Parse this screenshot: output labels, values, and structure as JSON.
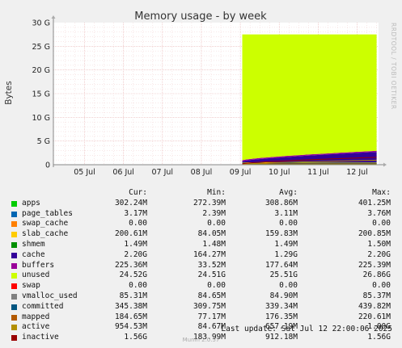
{
  "chart_data": {
    "type": "area",
    "title": "Memory usage - by week",
    "ylabel": "Bytes",
    "side_label": "RRDTOOL / TOBI OETIKER",
    "y_ticks": [
      "0",
      "5 G",
      "10 G",
      "15 G",
      "20 G",
      "25 G",
      "30 G"
    ],
    "ylim": [
      0,
      30
    ],
    "y_unit": "G",
    "x_ticks": [
      "05 Jul",
      "06 Jul",
      "07 Jul",
      "08 Jul",
      "09 Jul",
      "10 Jul",
      "11 Jul",
      "12 Jul"
    ],
    "x_days": [
      5,
      6,
      7,
      8,
      9,
      10,
      11,
      12
    ],
    "xlim_days": [
      4.2,
      12.55
    ],
    "data_start_day": 9.05,
    "grid": true,
    "stack": [
      {
        "name": "apps",
        "value": 0.302
      },
      {
        "name": "page_tables",
        "value": 0.003
      },
      {
        "name": "swap_cache",
        "value": 0.0
      },
      {
        "name": "slab_cache",
        "value": 0.201
      },
      {
        "name": "shmem",
        "value": 0.0015
      },
      {
        "name": "cache",
        "start": 0.2,
        "end": 2.2
      },
      {
        "name": "buffers",
        "value": 0.225
      },
      {
        "name": "unused",
        "top": 27.5
      }
    ],
    "overlays": [
      {
        "name": "committed",
        "value": 0.345
      },
      {
        "name": "mapped",
        "value": 0.185
      },
      {
        "name": "active",
        "start": 0.1,
        "end": 0.95
      },
      {
        "name": "inactive",
        "start": 0.2,
        "end": 1.56
      }
    ]
  },
  "legend": {
    "headers": {
      "cur": "Cur:",
      "min": "Min:",
      "avg": "Avg:",
      "max": "Max:"
    },
    "rows": [
      {
        "name": "apps",
        "color": "#00cc00",
        "cur": "302.24M",
        "min": "272.39M",
        "avg": "308.86M",
        "max": "401.25M"
      },
      {
        "name": "page_tables",
        "color": "#0066b3",
        "cur": "3.17M",
        "min": "2.39M",
        "avg": "3.11M",
        "max": "3.76M"
      },
      {
        "name": "swap_cache",
        "color": "#ff8000",
        "cur": "0.00",
        "min": "0.00",
        "avg": "0.00",
        "max": "0.00"
      },
      {
        "name": "slab_cache",
        "color": "#ffcc00",
        "cur": "200.61M",
        "min": "84.05M",
        "avg": "159.83M",
        "max": "200.85M"
      },
      {
        "name": "shmem",
        "color": "#008f00",
        "cur": "1.49M",
        "min": "1.48M",
        "avg": "1.49M",
        "max": "1.50M"
      },
      {
        "name": "cache",
        "color": "#330099",
        "cur": "2.20G",
        "min": "164.27M",
        "avg": "1.29G",
        "max": "2.20G"
      },
      {
        "name": "buffers",
        "color": "#990099",
        "cur": "225.36M",
        "min": "33.52M",
        "avg": "177.64M",
        "max": "225.39M"
      },
      {
        "name": "unused",
        "color": "#ccff00",
        "cur": "24.52G",
        "min": "24.51G",
        "avg": "25.51G",
        "max": "26.86G"
      },
      {
        "name": "swap",
        "color": "#ff0000",
        "cur": "0.00",
        "min": "0.00",
        "avg": "0.00",
        "max": "0.00"
      },
      {
        "name": "vmalloc_used",
        "color": "#808080",
        "cur": "85.31M",
        "min": "84.65M",
        "avg": "84.90M",
        "max": "85.37M"
      },
      {
        "name": "committed",
        "color": "#005580",
        "cur": "345.38M",
        "min": "309.75M",
        "avg": "339.34M",
        "max": "439.82M"
      },
      {
        "name": "mapped",
        "color": "#b35a00",
        "cur": "184.65M",
        "min": "77.17M",
        "avg": "176.35M",
        "max": "220.61M"
      },
      {
        "name": "active",
        "color": "#b38f00",
        "cur": "954.53M",
        "min": "84.67M",
        "avg": "657.19M",
        "max": "1.00G"
      },
      {
        "name": "inactive",
        "color": "#990000",
        "cur": "1.56G",
        "min": "183.99M",
        "avg": "912.18M",
        "max": "1.56G"
      }
    ]
  },
  "last_update": "Last update: Sat Jul 12 22:00:06 2025",
  "version": "Munin 2.0.57"
}
